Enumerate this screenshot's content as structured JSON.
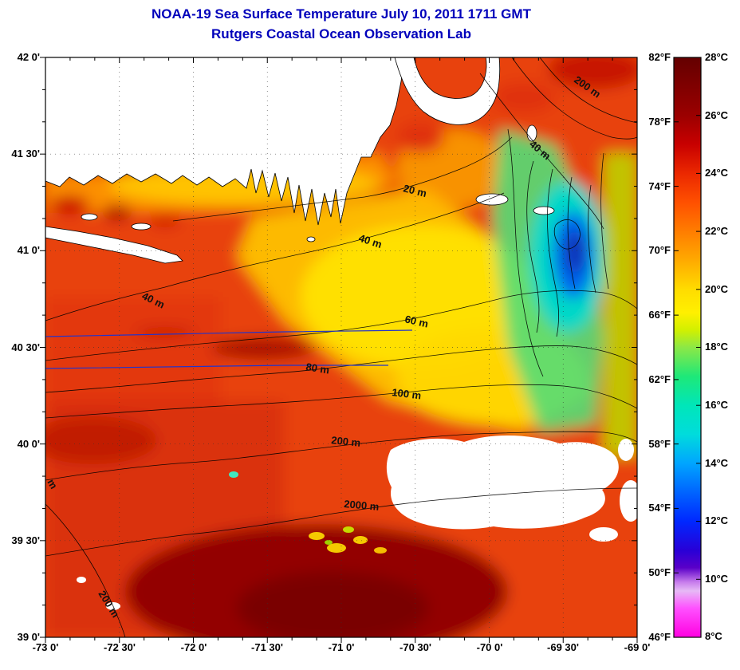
{
  "title": {
    "line1": "NOAA-19 Sea Surface Temperature July 10, 2011 1711 GMT",
    "line2": "Rutgers Coastal Ocean Observation Lab"
  },
  "axes": {
    "x_ticks": [
      "-73 0'",
      "-72 30'",
      "-72 0'",
      "-71 30'",
      "-71 0'",
      "-70 30'",
      "-70 0'",
      "-69 30'",
      "-69 0'"
    ],
    "y_ticks": [
      "42 0'",
      "41 30'",
      "41 0'",
      "40 30'",
      "40 0'",
      "39 30'",
      "39 0'"
    ]
  },
  "contour_labels": {
    "tr200": "200 m",
    "tr40": "40 m",
    "c20": "20 m",
    "mid40a": "40 m",
    "mid40b": "40 m",
    "c60": "60 m",
    "c80": "80 m",
    "c100": "100 m",
    "c200": "200 m",
    "c2000": "2000 m",
    "bl200": "200 m",
    "partial_m": "m"
  },
  "colorbar": {
    "f_labels": [
      "82°F",
      "78°F",
      "74°F",
      "70°F",
      "66°F",
      "62°F",
      "58°F",
      "54°F",
      "50°F",
      "46°F"
    ],
    "c_labels": [
      "28°C",
      "26°C",
      "24°C",
      "22°C",
      "20°C",
      "18°C",
      "16°C",
      "14°C",
      "12°C",
      "10°C",
      "8°C"
    ]
  },
  "colors": {
    "title_blue": "#0000bb",
    "sea_hot_maroon": "#7a0300",
    "sea_base_red": "#e8430e",
    "sea_warm_yellow": "#ffd800",
    "sea_cool_green": "#55dd77",
    "sea_cool_cyan": "#00d8c8",
    "sea_cold_blue": "#0b2fb4",
    "land_cloud_white": "#ffffff",
    "front_line_blue": "#2233cc"
  }
}
